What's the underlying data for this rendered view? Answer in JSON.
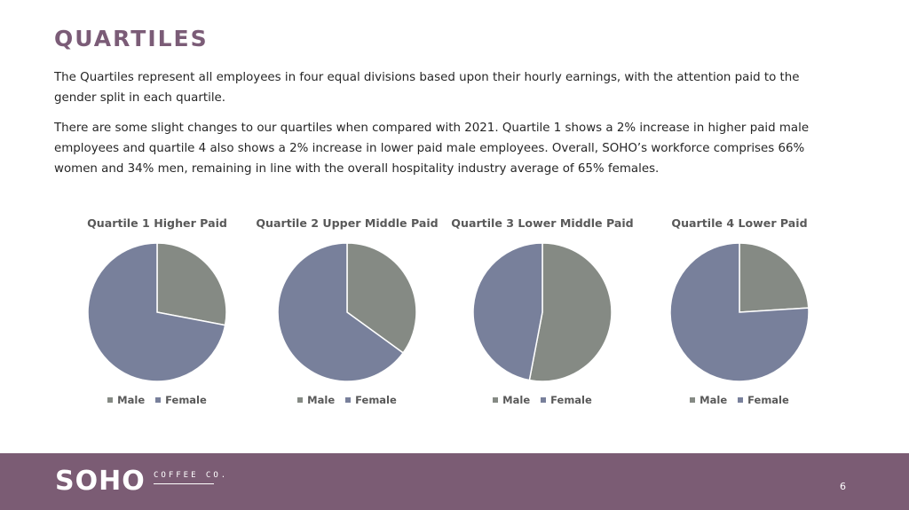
{
  "page": {
    "title": "QUARTILES",
    "paragraphs": [
      "The Quartiles represent all employees in four equal divisions based upon their hourly earnings, with the attention paid to the gender split in each quartile.",
      "There are some slight changes to our quartiles when compared with 2021. Quartile 1 shows a 2% increase in higher paid male employees and quartile 4 also shows a 2% increase in lower paid male employees. Overall, SOHO’s workforce comprises 66% women and 34% men, remaining in line with the overall hospitality industry average of 65% females."
    ]
  },
  "colors": {
    "male": "#858a84",
    "female": "#78809b",
    "accent": "#7b5c77",
    "footer": "#7b5c74"
  },
  "chart_data": [
    {
      "type": "pie",
      "title": "Quartile 1 Higher Paid",
      "categories": [
        "Male",
        "Female"
      ],
      "values": [
        28,
        72
      ],
      "legend": "bottom"
    },
    {
      "type": "pie",
      "title": "Quartile 2 Upper Middle Paid",
      "categories": [
        "Male",
        "Female"
      ],
      "values": [
        35,
        65
      ],
      "legend": "bottom"
    },
    {
      "type": "pie",
      "title": "Quartile 3 Lower Middle Paid",
      "categories": [
        "Male",
        "Female"
      ],
      "values": [
        53,
        47
      ],
      "legend": "bottom"
    },
    {
      "type": "pie",
      "title": "Quartile 4 Lower Paid",
      "categories": [
        "Male",
        "Female"
      ],
      "values": [
        24,
        76
      ],
      "legend": "bottom"
    }
  ],
  "footer": {
    "logo": "SOHO",
    "logo_sub": "COFFEE CO.",
    "page_number": "6"
  }
}
